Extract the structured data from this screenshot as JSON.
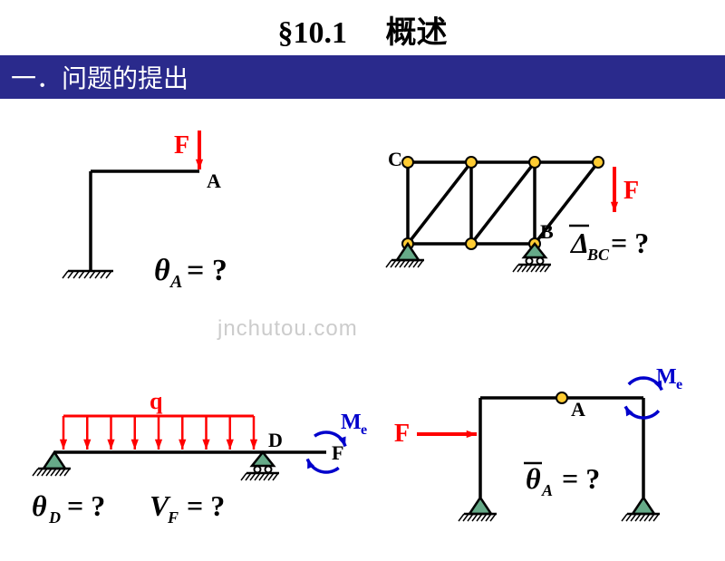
{
  "header": {
    "section": "§10.1",
    "title": "概述",
    "subtitle": "一．问题的提出"
  },
  "colors": {
    "blue": "#2a2a8c",
    "red": "#ff0000",
    "navy": "#0000cc",
    "orange_node": "#ffcc33",
    "black": "#000000",
    "white": "#ffffff",
    "support_fill": "#66aa88"
  },
  "style": {
    "line_stroke": 3.5,
    "force_stroke": 4,
    "node_radius": 6,
    "title_fontsize": 34,
    "subtitle_fontsize": 28,
    "label_fontsize_large": 30,
    "label_fontsize_med": 22,
    "watermark_text": "jnchutou.com",
    "watermark_color": "#cccccc",
    "hatch_spacing": 6
  },
  "diag1": {
    "F_label": "F",
    "A_label": "A",
    "eq_theta": "θ",
    "eq_sub": "A",
    "eq_rhs": "= ?"
  },
  "diag2": {
    "C_label": "C",
    "B_label": "B",
    "F_label": "F",
    "eq_delta": "Δ",
    "eq_sub": "BC",
    "eq_rhs": "= ?"
  },
  "diag3": {
    "q_label": "q",
    "D_label": "D",
    "F_label": "F",
    "Me_label": "M",
    "Me_sub": "e",
    "eq1_theta": "θ",
    "eq1_sub": "D",
    "eq1_rhs": "= ?",
    "eq2_V": "V",
    "eq2_sub": "F",
    "eq2_rhs": "= ?"
  },
  "diag4": {
    "A_label": "A",
    "F_label": "F",
    "Me_label": "M",
    "Me_sub": "e",
    "eq_theta": "θ",
    "eq_sub": "A",
    "eq_rhs": "= ?"
  }
}
